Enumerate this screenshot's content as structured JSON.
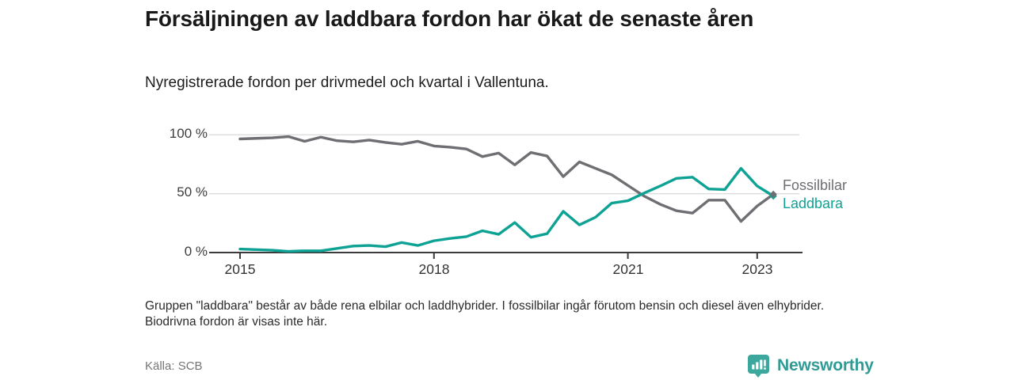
{
  "header": {
    "title": "Försäljningen av laddbara fordon har ökat de senaste åren",
    "subtitle": "Nyregistrerade fordon per drivmedel och kvartal i Vallentuna."
  },
  "chart_data": {
    "type": "line",
    "x_unit": "quarter",
    "x_start": "2015 Q1",
    "x_end": "2023 Q2",
    "x_tick_labels": [
      "2015",
      "2018",
      "2021",
      "2023"
    ],
    "x_tick_indices": [
      0,
      12,
      24,
      32
    ],
    "y_tick_labels": [
      "100 %",
      "50 %",
      "0 %"
    ],
    "y_gridlines": [
      100,
      50
    ],
    "ylim": [
      0,
      100
    ],
    "grid": "horizontal",
    "legend_position": "right-end-labels",
    "series": [
      {
        "name": "Fossilbilar",
        "color": "#6e6e73",
        "values": [
          96.5,
          97,
          97.5,
          98.5,
          94.5,
          98,
          95,
          94,
          95.5,
          93.5,
          92,
          94.5,
          90.5,
          89.5,
          88,
          81.5,
          84.5,
          74.5,
          85,
          82,
          64.5,
          77,
          71.5,
          66,
          57,
          48,
          41,
          35.5,
          33.5,
          44.5,
          44.5,
          26.5,
          39.5,
          49.5
        ]
      },
      {
        "name": "Laddbara",
        "color": "#0ea294",
        "values": [
          3,
          2.5,
          2,
          1,
          1.5,
          1.5,
          3.5,
          5.5,
          6,
          5,
          8.5,
          6,
          10,
          12,
          13.5,
          18.5,
          15.5,
          25.5,
          13,
          16,
          35,
          23.5,
          30,
          42,
          44,
          50.5,
          56.5,
          63,
          64,
          54,
          53.5,
          71.5,
          56.5,
          48
        ]
      }
    ]
  },
  "colors": {
    "axis": "#3b3b3b",
    "grid": "#dcdcdc",
    "brand": "#2f9b94"
  },
  "footnote": {
    "text": "Gruppen \"laddbara\" består av både rena elbilar och laddhybrider. I fossilbilar ingår förutom bensin och diesel även elhybrider. Biodrivna fordon är visas inte här."
  },
  "footer": {
    "source": "Källa: SCB",
    "brand": "Newsworthy",
    "brand_icon": "bar-chart-speech-bubble-icon"
  }
}
